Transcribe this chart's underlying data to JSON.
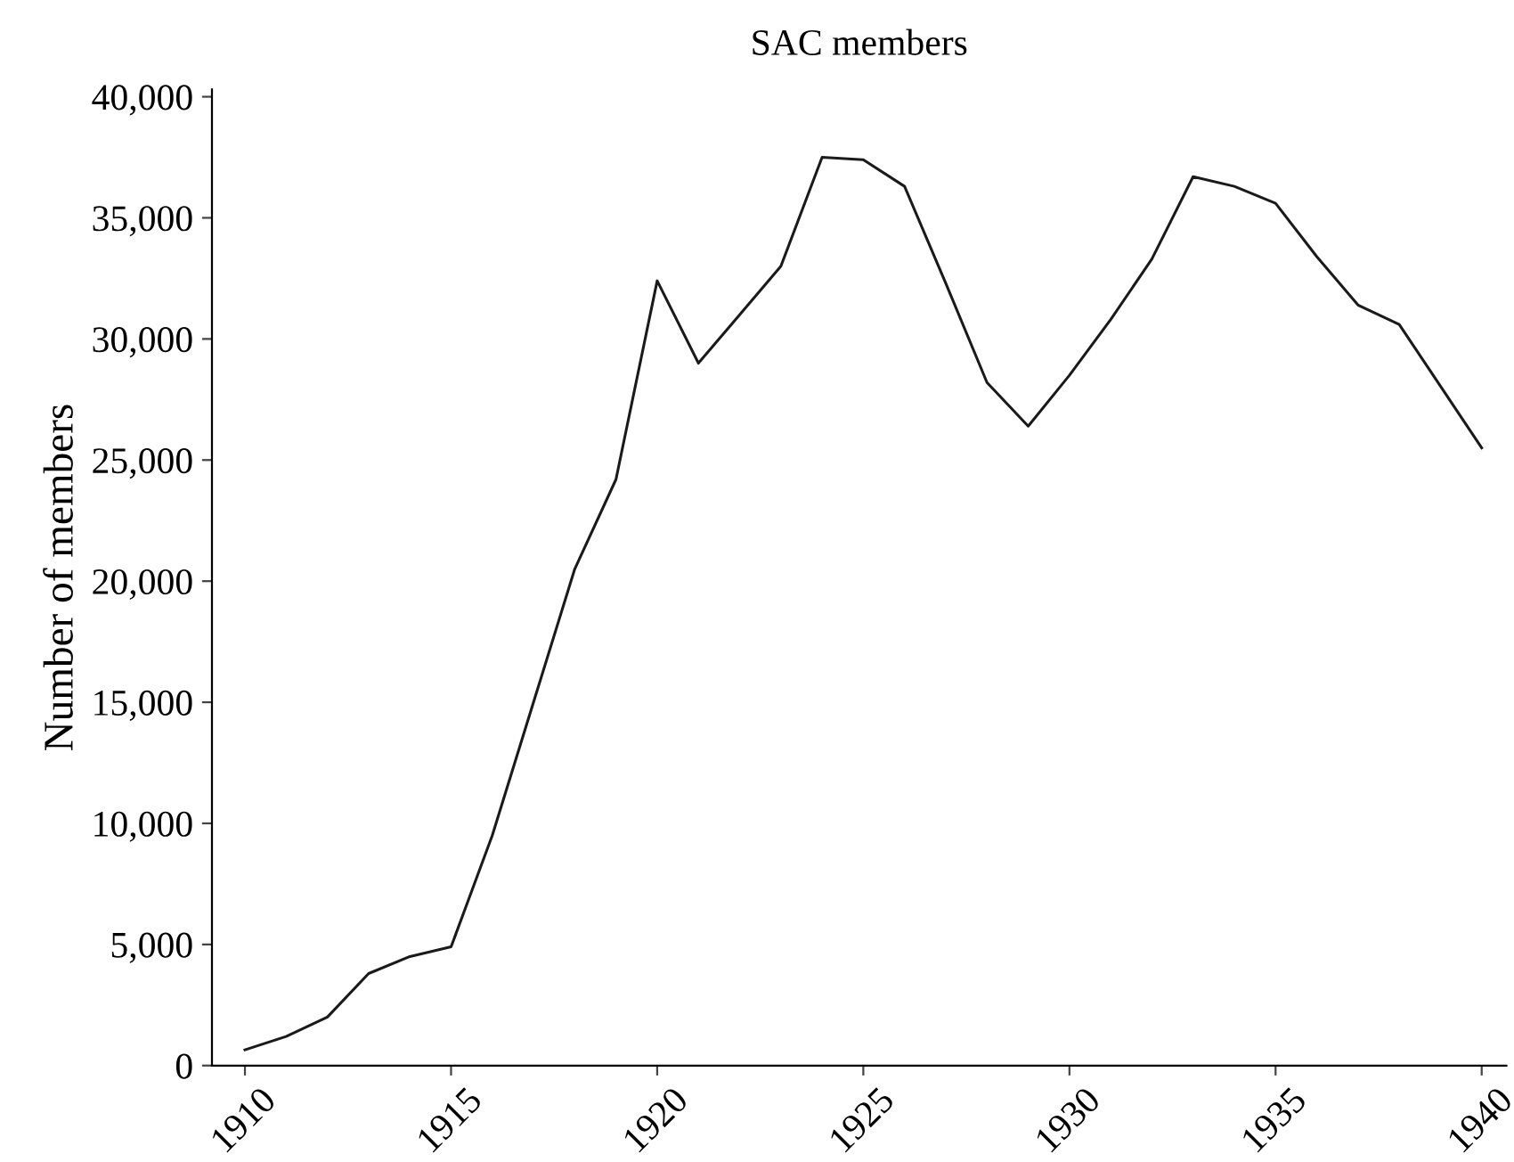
{
  "chart_data": {
    "type": "line",
    "title": "SAC members",
    "ylabel": "Number of members",
    "x": [
      1910,
      1911,
      1912,
      1913,
      1914,
      1915,
      1916,
      1917,
      1918,
      1919,
      1920,
      1921,
      1922,
      1923,
      1924,
      1925,
      1926,
      1927,
      1928,
      1929,
      1930,
      1931,
      1932,
      1933,
      1934,
      1935,
      1936,
      1937,
      1938,
      1940
    ],
    "series": [
      {
        "color": "#1a1a1a",
        "values": [
          650,
          1200,
          2000,
          3800,
          4500,
          4900,
          9500,
          15000,
          20500,
          24200,
          32400,
          29000,
          31000,
          33000,
          37500,
          37400,
          36300,
          32300,
          28200,
          26400,
          28500,
          30800,
          33300,
          36700,
          36300,
          35600,
          33400,
          31400,
          30600,
          25500
        ]
      }
    ],
    "xlim": [
      1909.2,
      1940.6
    ],
    "ylim": [
      0,
      40300
    ],
    "xticks": [
      1910,
      1915,
      1920,
      1925,
      1930,
      1935,
      1940
    ],
    "yticks": [
      {
        "value": 0,
        "label": "0"
      },
      {
        "value": 5000,
        "label": "5,000"
      },
      {
        "value": 10000,
        "label": "10,000"
      },
      {
        "value": 15000,
        "label": "15,000"
      },
      {
        "value": 20000,
        "label": "20,000"
      },
      {
        "value": 25000,
        "label": "25,000"
      },
      {
        "value": 30000,
        "label": "30,000"
      },
      {
        "value": 35000,
        "label": "35,000"
      },
      {
        "value": 40000,
        "label": "40,000"
      }
    ],
    "grid": false,
    "legend": false,
    "marker": "none",
    "line_style": "solid"
  }
}
